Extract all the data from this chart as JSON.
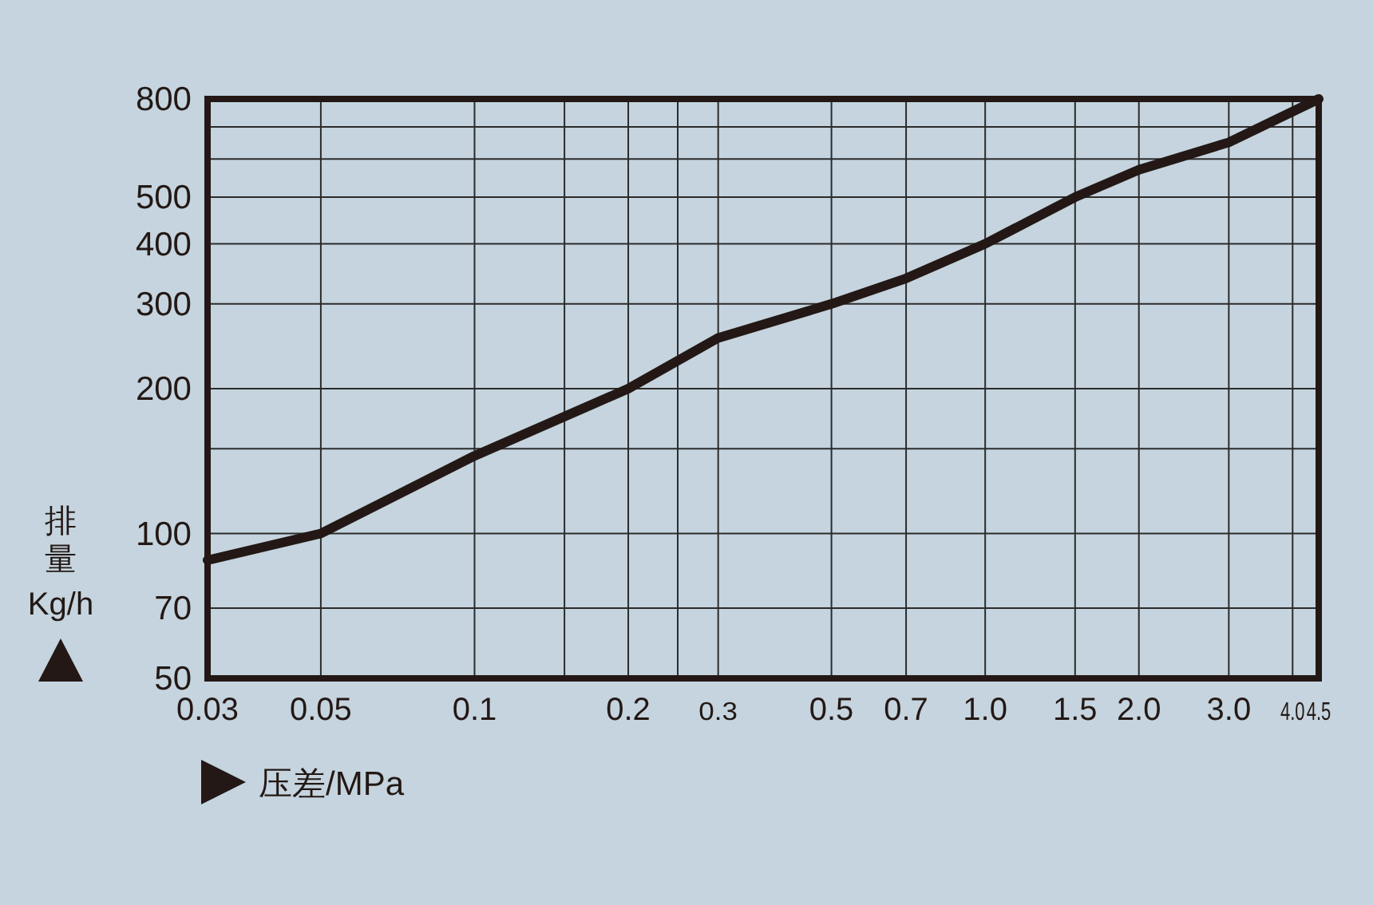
{
  "chart_data": {
    "type": "line",
    "xlabel": "压差/MPa",
    "ylabel": "排量 Kg/h",
    "log": "xy",
    "grid": true,
    "marker": "none",
    "line_style": "solid",
    "xlim": [
      0.03,
      4.5
    ],
    "ylim": [
      50,
      800
    ],
    "xticks": [
      {
        "value": 0.03,
        "label": "0.03"
      },
      0.05,
      0.1,
      {
        "value": 0.15,
        "label": null
      },
      0.2,
      {
        "value": 0.25,
        "label": null
      },
      0.3,
      0.5,
      0.7,
      {
        "value": 1,
        "label": "1.0"
      },
      1.5,
      {
        "value": 2,
        "label": "2.0"
      },
      {
        "value": 3,
        "label": "3.0"
      },
      {
        "value": 4,
        "label": "4.0"
      },
      4.5
    ],
    "yticks": [
      50,
      70,
      100,
      {
        "value": 150,
        "label": null
      },
      200,
      300,
      400,
      500,
      {
        "value": 600,
        "label": null
      },
      {
        "value": 700,
        "label": null
      },
      800
    ],
    "x": [
      0.03,
      0.05,
      0.1,
      0.2,
      0.3,
      0.5,
      0.7,
      1.0,
      1.5,
      2.0,
      3.0,
      4.5
    ],
    "series": [
      {
        "color": "#231815",
        "values": [
          88,
          100,
          145,
          200,
          255,
          300,
          339,
          400,
          500,
          570,
          650,
          800
        ]
      }
    ]
  }
}
